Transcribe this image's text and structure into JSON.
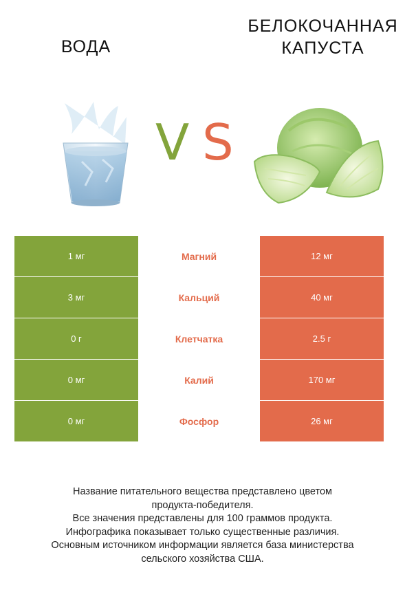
{
  "header": {
    "left_title": "ВОДА",
    "right_title_line1": "БЕЛОКОЧАННАЯ",
    "right_title_line2": "КАПУСТА",
    "vs_v": "V",
    "vs_s": "S"
  },
  "colors": {
    "left_winner": "#83a43b",
    "right_winner": "#e36b4b"
  },
  "nutrients": [
    {
      "left": "1 мг",
      "name": "Магний",
      "right": "12 мг"
    },
    {
      "left": "3 мг",
      "name": "Кальций",
      "right": "40 мг"
    },
    {
      "left": "0 г",
      "name": "Клетчатка",
      "right": "2.5 г"
    },
    {
      "left": "0 мг",
      "name": "Калий",
      "right": "170 мг"
    },
    {
      "left": "0 мг",
      "name": "Фосфор",
      "right": "26 мг"
    }
  ],
  "footnotes": [
    "Название питательного вещества представлено цветом",
    "продукта-победителя.",
    "Все значения представлены для 100 граммов продукта.",
    "Инфографика показывает только существенные различия.",
    "Основным источником информации является база министерства",
    "сельского хозяйства США."
  ]
}
